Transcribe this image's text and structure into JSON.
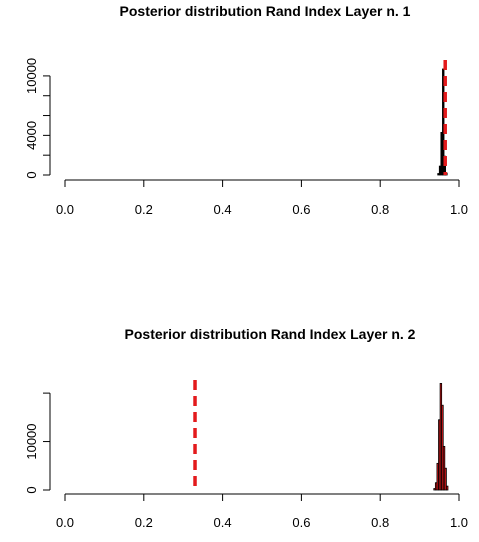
{
  "chart_data": [
    {
      "type": "bar",
      "title": "Posterior distribution Rand Index Layer n. 1",
      "xlabel": "",
      "ylabel": "",
      "xlim": [
        0.0,
        1.0
      ],
      "ylim": [
        0,
        11000
      ],
      "x_ticks": [
        "0.0",
        "0.2",
        "0.4",
        "0.6",
        "0.8",
        "1.0"
      ],
      "y_ticks": [
        "0",
        "4000",
        "10000"
      ],
      "y_tick_values": [
        0,
        2000,
        4000,
        6000,
        8000,
        10000
      ],
      "bins": [
        {
          "x": 0.948,
          "value": 150
        },
        {
          "x": 0.952,
          "value": 900
        },
        {
          "x": 0.956,
          "value": 4300
        },
        {
          "x": 0.96,
          "value": 10700
        },
        {
          "x": 0.964,
          "value": 1900
        },
        {
          "x": 0.968,
          "value": 200
        }
      ],
      "bin_width": 0.004,
      "bar_fill": "#000000",
      "reference_line": {
        "x": 0.965,
        "color": "#e31a1c",
        "style": "dashed"
      }
    },
    {
      "type": "bar",
      "title": "Posterior distribution Rand Index Layer n. 2",
      "xlabel": "",
      "ylabel": "",
      "xlim": [
        0.0,
        1.0
      ],
      "ylim": [
        0,
        22500
      ],
      "x_ticks": [
        "0.0",
        "0.2",
        "0.4",
        "0.6",
        "0.8",
        "1.0"
      ],
      "y_ticks": [
        "0",
        "10000"
      ],
      "y_tick_values": [
        0,
        10000,
        20000
      ],
      "bins": [
        {
          "x": 0.938,
          "value": 300
        },
        {
          "x": 0.942,
          "value": 1500
        },
        {
          "x": 0.946,
          "value": 5500
        },
        {
          "x": 0.95,
          "value": 14500
        },
        {
          "x": 0.954,
          "value": 22000
        },
        {
          "x": 0.958,
          "value": 17500
        },
        {
          "x": 0.962,
          "value": 9000
        },
        {
          "x": 0.966,
          "value": 4500
        },
        {
          "x": 0.97,
          "value": 800
        }
      ],
      "bin_width": 0.004,
      "bar_fill": "#e31a1c",
      "reference_line": {
        "x": 0.33,
        "color": "#e31a1c",
        "style": "dashed"
      }
    }
  ]
}
